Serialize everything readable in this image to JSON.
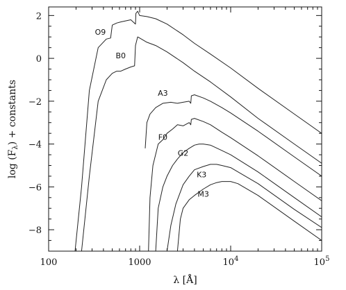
{
  "chart_data": {
    "type": "line",
    "title": "",
    "xlabel": "λ [Å]",
    "ylabel": "log (F",
    "ylabel_sub": "λ",
    "ylabel_tail": ") + constants",
    "x_scale": "log",
    "xlim": [
      100,
      100000
    ],
    "ylim": [
      -9,
      2.4
    ],
    "x_ticks": [
      {
        "value": 100,
        "base": "100",
        "exp": ""
      },
      {
        "value": 1000,
        "base": "1000",
        "exp": ""
      },
      {
        "value": 10000,
        "base": "10",
        "exp": "4"
      },
      {
        "value": 100000,
        "base": "10",
        "exp": "5"
      }
    ],
    "y_ticks": [
      2,
      0,
      -2,
      -4,
      -6,
      -8
    ],
    "grid": false,
    "series": [
      {
        "name": "O9",
        "label_at": [
          370,
          1.1
        ],
        "x": [
          195,
          230,
          280,
          350,
          430,
          480,
          500,
          560,
          620,
          700,
          800,
          900,
          910,
          950,
          1000,
          1200,
          1500,
          2000,
          3000,
          4000,
          6000,
          10000,
          20000,
          50000,
          100000
        ],
        "y": [
          -9,
          -6,
          -1.5,
          0.5,
          0.9,
          0.95,
          1.55,
          1.65,
          1.7,
          1.75,
          1.8,
          1.6,
          2.1,
          2.2,
          2.0,
          1.95,
          1.85,
          1.6,
          1.1,
          0.7,
          0.2,
          -0.45,
          -1.4,
          -2.6,
          -3.5
        ]
      },
      {
        "name": "B0",
        "label_at": [
          620,
          0.0
        ],
        "x": [
          230,
          280,
          350,
          430,
          500,
          560,
          620,
          700,
          800,
          880,
          900,
          950,
          1000,
          1200,
          1500,
          2000,
          3000,
          4000,
          6000,
          10000,
          20000,
          50000,
          100000
        ],
        "y": [
          -9,
          -5.5,
          -2.0,
          -1.0,
          -0.7,
          -0.6,
          -0.6,
          -0.5,
          -0.4,
          -0.35,
          0.6,
          1.0,
          0.95,
          0.75,
          0.6,
          0.3,
          -0.2,
          -0.6,
          -1.1,
          -1.8,
          -2.8,
          -4.0,
          -4.9
        ]
      },
      {
        "name": "A3",
        "label_at": [
          1800,
          -1.75
        ],
        "x": [
          1150,
          1200,
          1300,
          1500,
          1800,
          2200,
          2600,
          3000,
          3500,
          3646,
          3700,
          4000,
          5000,
          6000,
          8000,
          10000,
          20000,
          50000,
          100000
        ],
        "y": [
          -4.2,
          -3.0,
          -2.6,
          -2.3,
          -2.1,
          -2.05,
          -2.1,
          -2.05,
          -2.0,
          -2.1,
          -1.75,
          -1.7,
          -1.85,
          -2.0,
          -2.3,
          -2.55,
          -3.4,
          -4.6,
          -5.5
        ]
      },
      {
        "name": "F0",
        "label_at": [
          1800,
          -3.8
        ],
        "x": [
          1250,
          1300,
          1400,
          1600,
          1800,
          2000,
          2300,
          2600,
          3000,
          3500,
          3646,
          3700,
          4000,
          5000,
          6000,
          8000,
          10000,
          20000,
          50000,
          100000
        ],
        "y": [
          -9,
          -6.5,
          -5.0,
          -4.0,
          -3.8,
          -3.5,
          -3.3,
          -3.1,
          -3.15,
          -3.0,
          -3.1,
          -2.85,
          -2.8,
          -2.95,
          -3.1,
          -3.45,
          -3.7,
          -4.55,
          -5.75,
          -6.65
        ]
      },
      {
        "name": "G2",
        "label_at": [
          3000,
          -4.55
        ],
        "x": [
          1500,
          1600,
          1800,
          2000,
          2300,
          2600,
          3000,
          3500,
          4000,
          4500,
          5000,
          6000,
          8000,
          10000,
          20000,
          50000,
          100000
        ],
        "y": [
          -9,
          -7.0,
          -6.0,
          -5.5,
          -5.0,
          -4.7,
          -4.4,
          -4.2,
          -4.05,
          -4.0,
          -4.0,
          -4.05,
          -4.3,
          -4.5,
          -5.3,
          -6.5,
          -7.4
        ]
      },
      {
        "name": "K3",
        "label_at": [
          4800,
          -5.55
        ],
        "x": [
          2000,
          2200,
          2500,
          3000,
          3500,
          4000,
          5000,
          6000,
          7000,
          8000,
          10000,
          20000,
          50000,
          100000
        ],
        "y": [
          -9,
          -7.8,
          -6.8,
          -5.9,
          -5.5,
          -5.2,
          -5.05,
          -4.95,
          -4.95,
          -5.0,
          -5.1,
          -5.85,
          -7.05,
          -7.9
        ]
      },
      {
        "name": "M3",
        "label_at": [
          5000,
          -6.45
        ],
        "x": [
          2600,
          2800,
          3000,
          3500,
          4000,
          5000,
          6000,
          7000,
          8000,
          10000,
          12000,
          20000,
          50000,
          100000
        ],
        "y": [
          -9,
          -7.5,
          -7.0,
          -6.6,
          -6.4,
          -6.1,
          -5.9,
          -5.8,
          -5.75,
          -5.75,
          -5.85,
          -6.4,
          -7.6,
          -8.5
        ]
      }
    ]
  }
}
